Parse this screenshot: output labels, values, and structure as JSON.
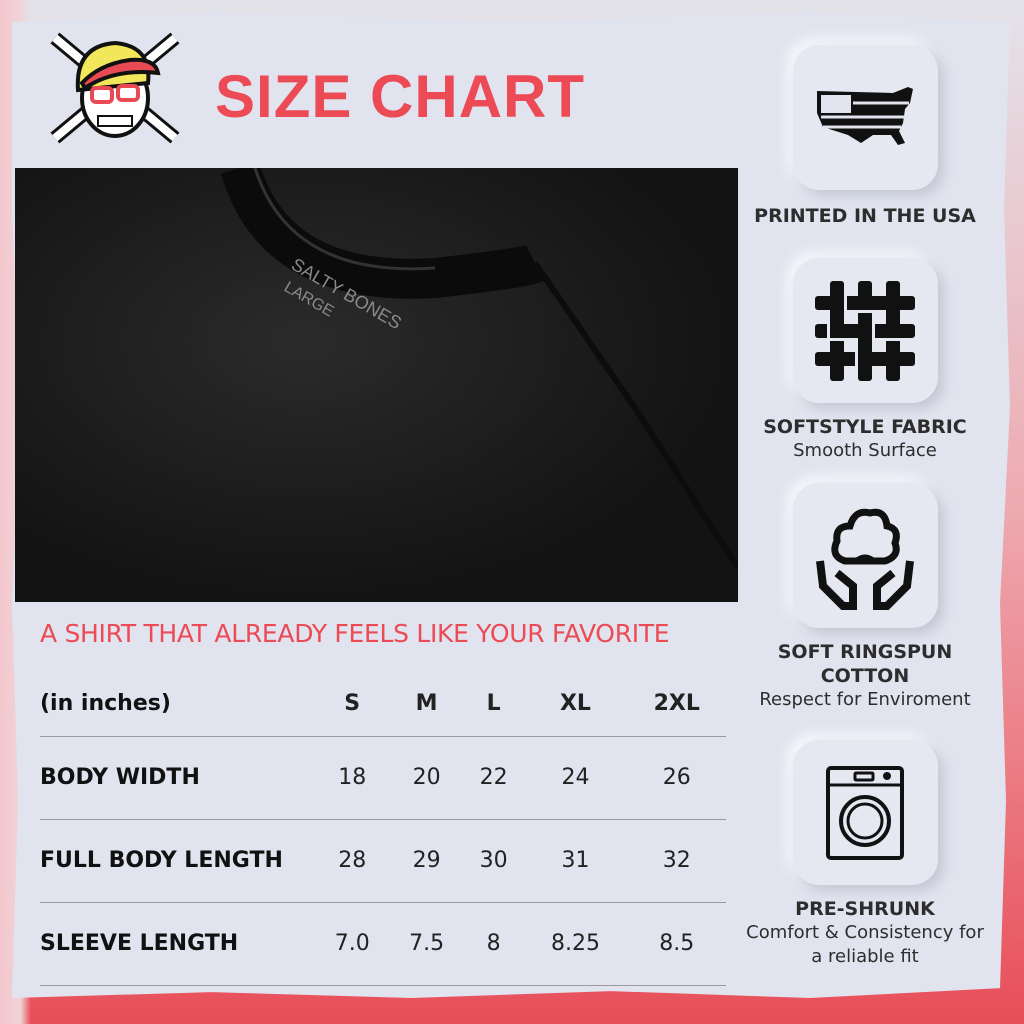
{
  "header": {
    "title": "SIZE CHART",
    "logo": "skull-crossbones-cap-logo"
  },
  "photo": {
    "label_brand": "SALTY BONES",
    "label_size": "LARGE"
  },
  "tagline": "A SHIRT THAT ALREADY FEELS LIKE YOUR FAVORITE",
  "table": {
    "unit_label": "(in inches)",
    "sizes": [
      "S",
      "M",
      "L",
      "XL",
      "2XL"
    ],
    "rows": [
      {
        "label": "BODY WIDTH",
        "values": [
          "18",
          "20",
          "22",
          "24",
          "26"
        ]
      },
      {
        "label": "FULL BODY LENGTH",
        "values": [
          "28",
          "29",
          "30",
          "31",
          "32"
        ]
      },
      {
        "label": "SLEEVE LENGTH",
        "values": [
          "7.0",
          "7.5",
          "8",
          "8.25",
          "8.5"
        ]
      }
    ]
  },
  "features": [
    {
      "icon": "usa-flag-map-icon",
      "title": "PRINTED IN THE USA"
    },
    {
      "icon": "woven-fabric-icon",
      "title": "SOFTSTYLE FABRIC",
      "subtitle": "Smooth Surface"
    },
    {
      "icon": "cotton-hands-icon",
      "title": "SOFT RINGSPUN COTTON",
      "subtitle": "Respect for Enviroment"
    },
    {
      "icon": "washing-machine-icon",
      "title": "PRE-SHRUNK",
      "subtitle": "Comfort & Consistency for a reliable fit"
    }
  ],
  "colors": {
    "accent": "#ec4a54",
    "background": "#e1e4ef"
  }
}
